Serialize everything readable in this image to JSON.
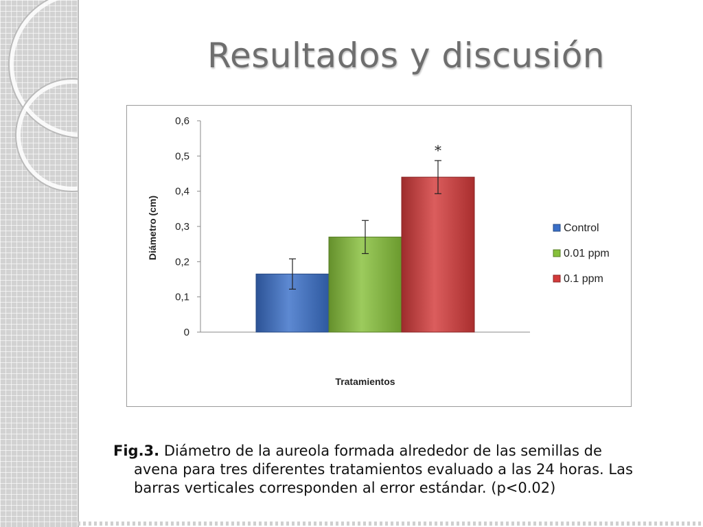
{
  "slide": {
    "title": "Resultados y discusión"
  },
  "colors": {
    "control": "#3a6fc8",
    "ppm_001": "#86c03a",
    "ppm_01": "#d33a3a"
  },
  "chart_data": {
    "type": "bar",
    "ylabel": "Diámetro (cm)",
    "xlabel": "Tratamientos",
    "ylim": [
      0,
      0.6
    ],
    "yticks": [
      "0",
      "0,1",
      "0,2",
      "0,3",
      "0,4",
      "0,5",
      "0,6"
    ],
    "series": [
      {
        "name": "Control",
        "value": 0.165,
        "error": 0.043,
        "color": "#3a6fc8"
      },
      {
        "name": "0.01 ppm",
        "value": 0.27,
        "error": 0.047,
        "color": "#86c03a"
      },
      {
        "name": "0.1 ppm",
        "value": 0.44,
        "error": 0.047,
        "color": "#d33a3a",
        "annotation": "*"
      }
    ],
    "legend": "right",
    "grid": false
  },
  "caption": {
    "label": "Fig.3.",
    "line1": "Diámetro de la aureola formada alrededor de las semillas de",
    "line2": "avena para tres diferentes tratamientos evaluado a las 24 horas. Las",
    "line3": "barras verticales corresponden al error estándar. (p<0.02)"
  }
}
